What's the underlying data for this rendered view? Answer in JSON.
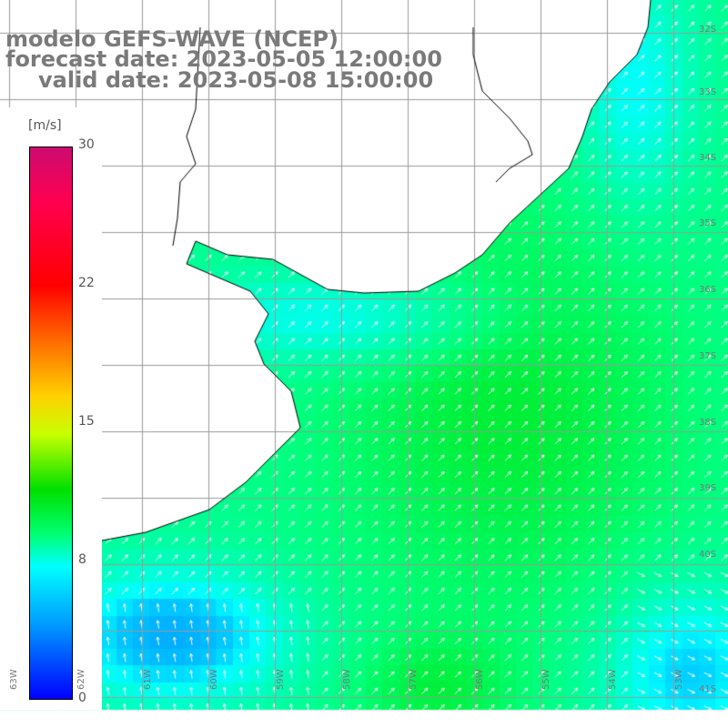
{
  "title": {
    "line1": "modelo GEFS-WAVE (NCEP)",
    "line2": "forecast date: 2023-05-05 12:00:00",
    "line3": "valid date: 2023-05-08 15:00:00"
  },
  "colorbar": {
    "unit": "[m/s]",
    "ticks": [
      "30",
      "22",
      "15",
      "8",
      "0"
    ],
    "min": 0,
    "max": 30,
    "colors": [
      "#0000ff",
      "#00a0ff",
      "#00ffff",
      "#00ff70",
      "#00e000",
      "#c8ff00",
      "#ffd000",
      "#ff6a00",
      "#ff0000",
      "#ff0050",
      "#cc0b6f"
    ]
  },
  "lat_labels": [
    "32S",
    "33S",
    "34S",
    "35S",
    "36S",
    "37S",
    "38S",
    "39S",
    "40S",
    "41S"
  ],
  "lon_labels": [
    "63W",
    "62W",
    "61W",
    "60W",
    "59W",
    "58W",
    "57W",
    "56W",
    "55W",
    "54W",
    "53W"
  ],
  "field": {
    "variable": "wind speed",
    "units": "m/s",
    "arrow_direction": "north-east"
  }
}
